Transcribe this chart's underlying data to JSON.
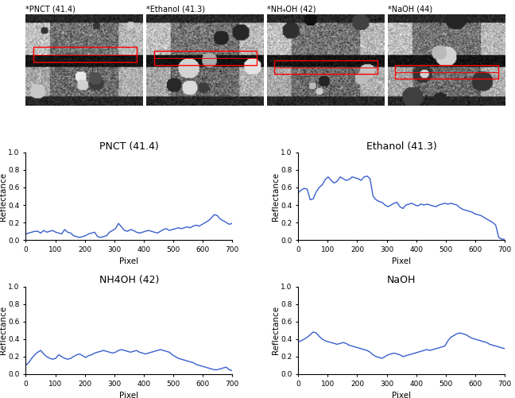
{
  "titles_top": [
    "*PNCT (41.4)",
    "*Ethanol (41.3)",
    "*NH₄OH (42)",
    "*NaOH (44)"
  ],
  "plot_titles": [
    "PNCT (41.4)",
    "Ethanol (41.3)",
    "NH4OH (42)",
    "NaOH"
  ],
  "xlabel": "Pixel",
  "ylabel": "Reflectance",
  "xlim": [
    0,
    700
  ],
  "ylim": [
    0,
    1
  ],
  "yticks": [
    0,
    0.2,
    0.4,
    0.6,
    0.8,
    1
  ],
  "xticks": [
    0,
    100,
    200,
    300,
    400,
    500,
    600,
    700
  ],
  "line_color": "#3a5fcd",
  "line_width": 1.0,
  "bg_color": "#ffffff",
  "pnct_y": [
    0.07,
    0.08,
    0.09,
    0.1,
    0.1,
    0.08,
    0.11,
    0.09,
    0.1,
    0.11,
    0.09,
    0.08,
    0.07,
    0.12,
    0.09,
    0.08,
    0.05,
    0.04,
    0.03,
    0.04,
    0.05,
    0.07,
    0.08,
    0.09,
    0.04,
    0.03,
    0.04,
    0.05,
    0.09,
    0.11,
    0.13,
    0.19,
    0.15,
    0.11,
    0.1,
    0.12,
    0.11,
    0.09,
    0.08,
    0.09,
    0.1,
    0.11,
    0.1,
    0.09,
    0.08,
    0.1,
    0.12,
    0.13,
    0.11,
    0.12,
    0.13,
    0.14,
    0.13,
    0.14,
    0.15,
    0.14,
    0.16,
    0.17,
    0.16,
    0.18,
    0.2,
    0.22,
    0.25,
    0.29,
    0.28,
    0.24,
    0.22,
    0.2,
    0.18,
    0.19
  ],
  "ethanol_y": [
    0.54,
    0.57,
    0.59,
    0.58,
    0.46,
    0.47,
    0.55,
    0.6,
    0.63,
    0.69,
    0.72,
    0.68,
    0.65,
    0.67,
    0.72,
    0.7,
    0.68,
    0.69,
    0.72,
    0.71,
    0.7,
    0.68,
    0.72,
    0.73,
    0.7,
    0.5,
    0.46,
    0.44,
    0.43,
    0.4,
    0.38,
    0.4,
    0.42,
    0.43,
    0.38,
    0.36,
    0.4,
    0.41,
    0.42,
    0.4,
    0.39,
    0.41,
    0.4,
    0.41,
    0.4,
    0.39,
    0.38,
    0.4,
    0.41,
    0.42,
    0.41,
    0.42,
    0.41,
    0.4,
    0.37,
    0.35,
    0.34,
    0.33,
    0.32,
    0.3,
    0.29,
    0.28,
    0.26,
    0.24,
    0.22,
    0.2,
    0.17,
    0.03,
    0.01,
    0.01
  ],
  "nh4oh_y": [
    0.1,
    0.13,
    0.18,
    0.22,
    0.25,
    0.27,
    0.23,
    0.2,
    0.18,
    0.17,
    0.18,
    0.22,
    0.2,
    0.18,
    0.17,
    0.18,
    0.2,
    0.22,
    0.23,
    0.21,
    0.19,
    0.21,
    0.22,
    0.24,
    0.25,
    0.26,
    0.27,
    0.26,
    0.25,
    0.24,
    0.25,
    0.27,
    0.28,
    0.27,
    0.26,
    0.25,
    0.26,
    0.27,
    0.25,
    0.24,
    0.23,
    0.24,
    0.25,
    0.26,
    0.27,
    0.28,
    0.27,
    0.26,
    0.25,
    0.22,
    0.2,
    0.18,
    0.17,
    0.16,
    0.15,
    0.14,
    0.13,
    0.11,
    0.1,
    0.09,
    0.08,
    0.07,
    0.06,
    0.05,
    0.05,
    0.06,
    0.07,
    0.08,
    0.05,
    0.04
  ],
  "naoh_y": [
    0.37,
    0.38,
    0.4,
    0.42,
    0.45,
    0.48,
    0.47,
    0.43,
    0.4,
    0.38,
    0.37,
    0.36,
    0.35,
    0.34,
    0.35,
    0.36,
    0.35,
    0.33,
    0.32,
    0.31,
    0.3,
    0.29,
    0.28,
    0.27,
    0.25,
    0.22,
    0.2,
    0.19,
    0.18,
    0.2,
    0.22,
    0.23,
    0.24,
    0.23,
    0.22,
    0.2,
    0.21,
    0.22,
    0.23,
    0.24,
    0.25,
    0.26,
    0.27,
    0.28,
    0.27,
    0.28,
    0.29,
    0.3,
    0.31,
    0.32,
    0.38,
    0.42,
    0.44,
    0.46,
    0.47,
    0.46,
    0.45,
    0.43,
    0.41,
    0.4,
    0.39,
    0.38,
    0.37,
    0.36,
    0.34,
    0.33,
    0.32,
    0.31,
    0.3,
    0.29
  ]
}
